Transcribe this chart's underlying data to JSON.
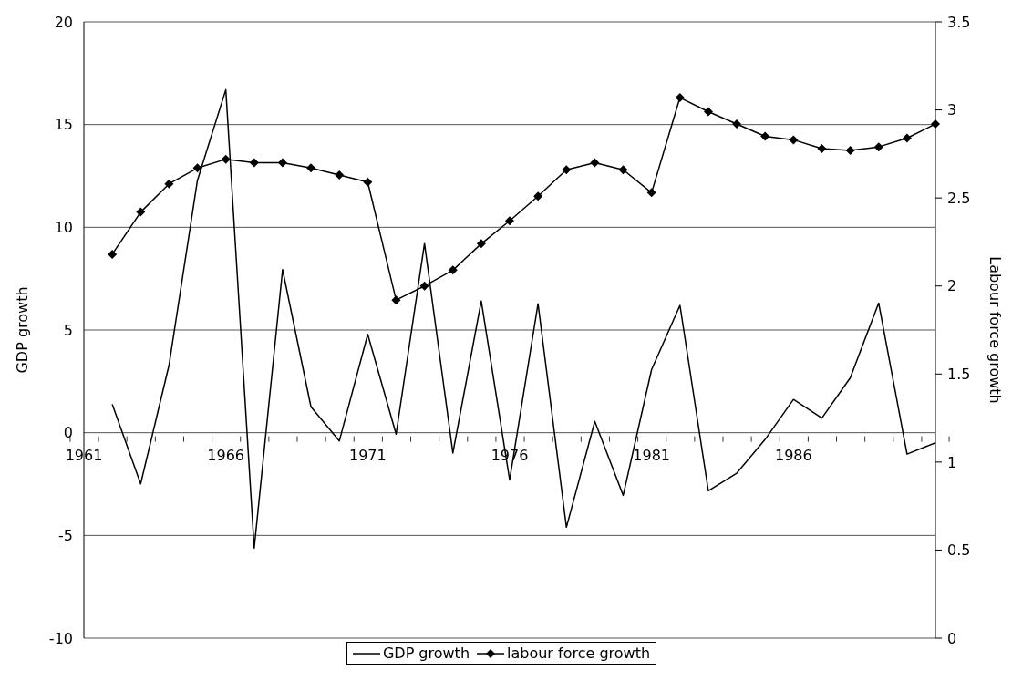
{
  "chart_data": {
    "type": "line",
    "categories": [
      "1961",
      null,
      null,
      null,
      null,
      "1966",
      null,
      null,
      null,
      null,
      "1971",
      null,
      null,
      null,
      null,
      "1976",
      null,
      null,
      null,
      null,
      "1981",
      null,
      null,
      null,
      null,
      "1986",
      null,
      null,
      null,
      null,
      null
    ],
    "ylabel": "GDP growth",
    "y2label": "Labour force growth",
    "ylim": [
      -10,
      20
    ],
    "yticks": [
      -10,
      -5,
      0,
      5,
      10,
      15,
      20
    ],
    "y2lim": [
      0,
      3.5
    ],
    "y2ticks": [
      0,
      0.5,
      1,
      1.5,
      2,
      2.5,
      3,
      3.5
    ],
    "grid": "y",
    "legend": "bottom",
    "line_style": "solid",
    "series": [
      {
        "name": "GDP growth",
        "color": "#000000",
        "marker": "none",
        "values": [
          null,
          1.38,
          -2.49,
          3.29,
          12.28,
          16.7,
          -5.62,
          7.94,
          1.26,
          -0.4,
          4.79,
          -0.07,
          9.21,
          -0.99,
          6.41,
          -2.3,
          6.28,
          -4.6,
          0.55,
          -3.05,
          3.07,
          6.2,
          -2.83,
          -1.97,
          -0.33,
          1.62,
          0.71,
          2.67,
          6.31,
          -1.04,
          -0.49
        ]
      },
      {
        "name": "labour force growth",
        "color": "#000000",
        "marker": "diamond",
        "axis": "y2",
        "values": [
          null,
          2.18,
          2.42,
          2.58,
          2.67,
          2.72,
          2.7,
          2.7,
          2.67,
          2.63,
          2.59,
          1.92,
          2.0,
          2.09,
          2.24,
          2.37,
          2.51,
          2.66,
          2.7,
          2.66,
          2.53,
          3.07,
          2.99,
          2.92,
          2.85,
          2.83,
          2.78,
          2.77,
          2.79,
          2.84,
          2.92
        ]
      }
    ]
  }
}
